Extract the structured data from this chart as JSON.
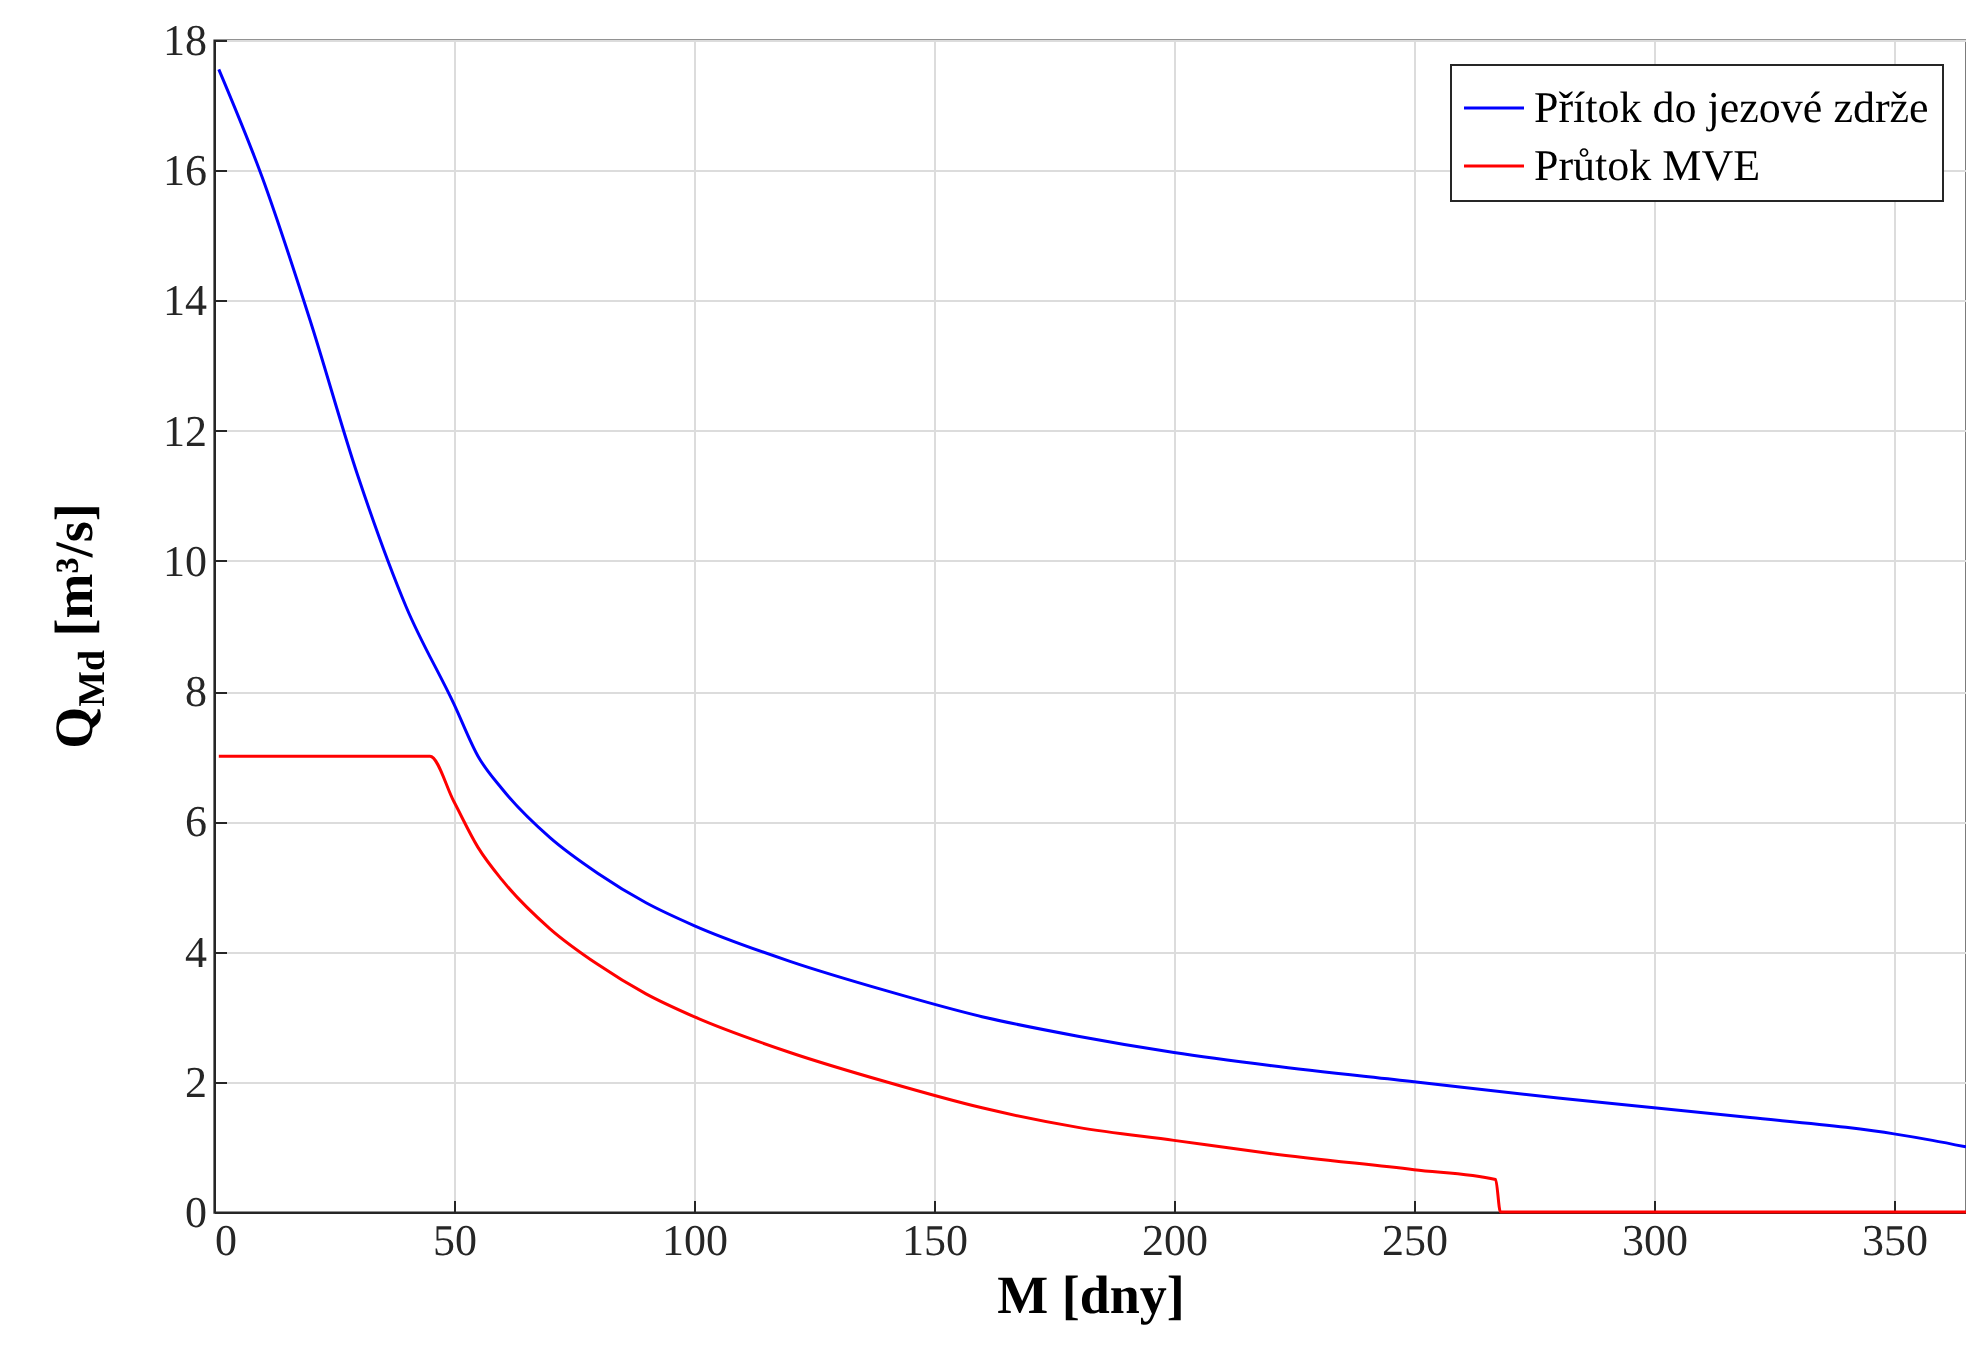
{
  "chart_data": {
    "type": "line",
    "xlabel": "M [dny]",
    "ylabel": "Q$_{Md}$ [m³/s]",
    "xlim": [
      0,
      365
    ],
    "xticks": [
      0,
      50,
      100,
      150,
      200,
      250,
      300,
      350
    ],
    "ylim": [
      0,
      18
    ],
    "yticks": [
      0,
      2,
      4,
      6,
      8,
      10,
      12,
      14,
      16,
      18
    ],
    "grid": true,
    "legend": "top right",
    "marker": "none",
    "line_style": "solid",
    "series": [
      {
        "name": "Přítok do jezové zdrže",
        "color": "#0000ff",
        "x": [
          1,
          10,
          20,
          30,
          40,
          50,
          55,
          60,
          70,
          80,
          90,
          100,
          120,
          140,
          160,
          180,
          200,
          220,
          250,
          280,
          300,
          320,
          340,
          350,
          358,
          365
        ],
        "values": [
          17.55,
          15.9,
          13.7,
          11.3,
          9.3,
          7.8,
          7.0,
          6.5,
          5.75,
          5.2,
          4.75,
          4.4,
          3.85,
          3.4,
          3.0,
          2.7,
          2.45,
          2.25,
          2.0,
          1.75,
          1.6,
          1.45,
          1.3,
          1.2,
          1.1,
          1.0
        ]
      },
      {
        "name": "Průtok MVE",
        "color": "#ff0000",
        "x": [
          1,
          45,
          50,
          55,
          60,
          70,
          80,
          90,
          100,
          120,
          140,
          160,
          180,
          200,
          220,
          250,
          267,
          268,
          365
        ],
        "values": [
          7,
          7,
          6.3,
          5.6,
          5.1,
          4.35,
          3.8,
          3.35,
          3.0,
          2.45,
          2.0,
          1.6,
          1.3,
          1.1,
          0.9,
          0.65,
          0.5,
          0,
          0
        ]
      }
    ]
  }
}
